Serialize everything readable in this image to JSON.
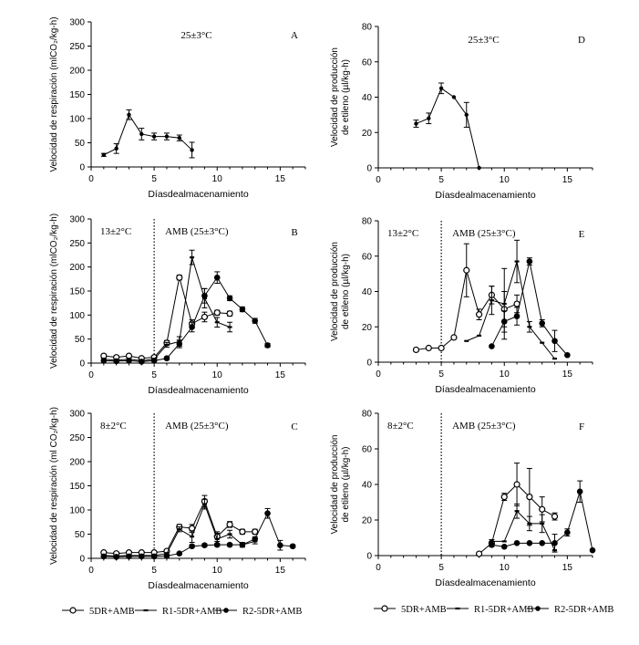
{
  "chart_data": [
    {
      "id": "A",
      "type": "line",
      "panel_letter": "A",
      "condition": "25±3°C",
      "xlabel": "Díasdealmacenamiento",
      "ylabel_line1": "",
      "ylabel_line2": "Velocidad de respiración (mlCO₂/kg-h)",
      "xlim": [
        0,
        17
      ],
      "xticks": [
        0,
        5,
        10,
        15
      ],
      "ylim": [
        0,
        300
      ],
      "yticks": [
        0,
        50,
        100,
        150,
        200,
        250,
        300
      ],
      "series": [
        {
          "marker": "dot",
          "x": [
            1,
            2,
            3,
            4,
            5,
            6,
            7,
            8
          ],
          "y": [
            25,
            38,
            108,
            68,
            63,
            63,
            60,
            35
          ],
          "err": [
            3,
            10,
            10,
            12,
            7,
            7,
            6,
            16
          ]
        }
      ]
    },
    {
      "id": "D",
      "type": "line",
      "panel_letter": "D",
      "condition": "25±3°C",
      "xlabel": "Díasdealmacenamiento",
      "ylabel_line1": "Velocidad de producción",
      "ylabel_line2": "de etileno (µl/kg-h)",
      "xlim": [
        0,
        17
      ],
      "xticks": [
        0,
        5,
        10,
        15
      ],
      "ylim": [
        0,
        80
      ],
      "yticks": [
        0,
        20,
        40,
        60,
        80
      ],
      "series": [
        {
          "marker": "dot",
          "x": [
            3,
            4,
            5,
            6,
            7,
            8
          ],
          "y": [
            25,
            28,
            45,
            40,
            30,
            0
          ],
          "err": [
            2,
            3,
            3,
            0,
            7,
            0
          ]
        }
      ]
    },
    {
      "id": "B",
      "type": "line",
      "panel_letter": "B",
      "condition": "13±2°C",
      "condition2": "AMB (25±3°C)",
      "xlabel": "Díasdealmacenamiento",
      "ylabel_line1": "",
      "ylabel_line2": "Velocidad de respiración (mlCO₂/kg-h)",
      "xlim": [
        0,
        17
      ],
      "xticks": [
        0,
        5,
        10,
        15
      ],
      "ylim": [
        0,
        300
      ],
      "yticks": [
        0,
        50,
        100,
        150,
        200,
        250,
        300
      ],
      "vline": 5,
      "series": [
        {
          "name": "5DR+AMB",
          "marker": "open",
          "x": [
            1,
            2,
            3,
            4,
            5,
            6,
            7,
            8,
            9,
            10,
            11
          ],
          "y": [
            15,
            12,
            15,
            10,
            12,
            42,
            178,
            82,
            96,
            105,
            103
          ],
          "err": [
            3,
            3,
            3,
            3,
            3,
            5,
            5,
            8,
            10,
            5,
            5
          ]
        },
        {
          "name": "R1-5DR+AMB",
          "marker": "dash",
          "x": [
            1,
            2,
            3,
            4,
            5,
            6,
            7,
            8,
            9,
            10,
            11
          ],
          "y": [
            8,
            6,
            8,
            5,
            8,
            38,
            45,
            220,
            135,
            85,
            75
          ],
          "err": [
            2,
            2,
            2,
            2,
            2,
            5,
            10,
            15,
            20,
            10,
            10
          ]
        },
        {
          "name": "R2-5DR+AMB",
          "marker": "filled",
          "x": [
            1,
            2,
            3,
            4,
            5,
            6,
            7,
            8,
            9,
            10,
            11,
            12,
            13,
            14
          ],
          "y": [
            5,
            4,
            5,
            3,
            5,
            10,
            40,
            75,
            140,
            178,
            135,
            112,
            88,
            37
          ],
          "err": [
            1,
            1,
            1,
            1,
            1,
            3,
            8,
            10,
            15,
            12,
            5,
            5,
            5,
            4
          ]
        }
      ]
    },
    {
      "id": "E",
      "type": "line",
      "panel_letter": "E",
      "condition": "13±2°C",
      "condition2": "AMB (25±3°C)",
      "xlabel": "Díasdealmacenamiento",
      "ylabel_line1": "Velocidad de producción",
      "ylabel_line2": "de etileno (µl/kg-h)",
      "xlim": [
        0,
        17
      ],
      "xticks": [
        0,
        5,
        10,
        15
      ],
      "ylim": [
        0,
        80
      ],
      "yticks": [
        0,
        20,
        40,
        60,
        80
      ],
      "vline": 5,
      "series": [
        {
          "name": "5DR+AMB",
          "marker": "open",
          "x": [
            3,
            4,
            5,
            6,
            7,
            8,
            9,
            10,
            11
          ],
          "y": [
            7,
            8,
            8,
            14,
            52,
            27,
            38,
            30,
            33
          ],
          "err": [
            0,
            0,
            0,
            0,
            15,
            3,
            5,
            10,
            5
          ]
        },
        {
          "name": "R1-5DR+AMB",
          "marker": "dash",
          "x": [
            7,
            8,
            9,
            10,
            11,
            12,
            13,
            14
          ],
          "y": [
            12,
            15,
            35,
            33,
            57,
            20,
            11,
            2
          ],
          "err": [
            0,
            0,
            8,
            20,
            12,
            3,
            0,
            0
          ]
        },
        {
          "name": "R2-5DR+AMB",
          "marker": "filled",
          "x": [
            9,
            10,
            11,
            12,
            13,
            14,
            15
          ],
          "y": [
            9,
            23,
            26,
            57,
            22,
            12,
            4
          ],
          "err": [
            0,
            6,
            5,
            2,
            2,
            6,
            0
          ]
        }
      ]
    },
    {
      "id": "C",
      "type": "line",
      "panel_letter": "C",
      "condition": "8±2°C",
      "condition2": "AMB (25±3°C)",
      "xlabel": "Díasdealmacenamiento",
      "ylabel_line1": "",
      "ylabel_line2": "Velocidad de respiración (ml CO₂/kg-h)",
      "xlim": [
        0,
        17
      ],
      "xticks": [
        0,
        5,
        10,
        15
      ],
      "ylim": [
        0,
        300
      ],
      "yticks": [
        0,
        50,
        100,
        150,
        200,
        250,
        300
      ],
      "vline": 5,
      "series": [
        {
          "name": "5DR+AMB",
          "marker": "open",
          "x": [
            1,
            2,
            3,
            4,
            5,
            6,
            7,
            8,
            9,
            10,
            11,
            12,
            13
          ],
          "y": [
            12,
            10,
            12,
            12,
            12,
            15,
            65,
            62,
            118,
            45,
            70,
            55,
            55
          ],
          "err": [
            2,
            2,
            2,
            2,
            2,
            3,
            5,
            8,
            12,
            10,
            6,
            5,
            5
          ]
        },
        {
          "name": "R1-5DR+AMB",
          "marker": "dash",
          "x": [
            1,
            2,
            3,
            4,
            5,
            6,
            7,
            8,
            9,
            10,
            11,
            12,
            13
          ],
          "y": [
            6,
            5,
            6,
            6,
            6,
            10,
            60,
            45,
            112,
            40,
            50,
            28,
            35
          ],
          "err": [
            1,
            1,
            1,
            1,
            1,
            2,
            5,
            12,
            10,
            12,
            8,
            5,
            5
          ]
        },
        {
          "name": "R2-5DR+AMB",
          "marker": "filled",
          "x": [
            1,
            2,
            3,
            4,
            5,
            6,
            7,
            8,
            9,
            10,
            11,
            12,
            13,
            14,
            15,
            16
          ],
          "y": [
            4,
            3,
            4,
            4,
            4,
            5,
            10,
            25,
            27,
            28,
            28,
            28,
            40,
            93,
            27,
            25
          ],
          "err": [
            1,
            1,
            1,
            1,
            1,
            1,
            2,
            3,
            3,
            3,
            3,
            3,
            4,
            10,
            10,
            3
          ]
        }
      ]
    },
    {
      "id": "F",
      "type": "line",
      "panel_letter": "F",
      "condition": "8±2°C",
      "condition2": "AMB (25±3°C)",
      "xlabel": "Díasdealmacenamiento",
      "ylabel_line1": "Velocidad de producción",
      "ylabel_line2": "de etileno (µl/kg-h)",
      "xlim": [
        0,
        17
      ],
      "xticks": [
        0,
        5,
        10,
        15
      ],
      "ylim": [
        0,
        80
      ],
      "yticks": [
        0,
        20,
        40,
        60,
        80
      ],
      "vline": 5,
      "series": [
        {
          "name": "5DR+AMB",
          "marker": "open",
          "x": [
            8,
            9,
            10,
            11,
            12,
            13,
            14
          ],
          "y": [
            1,
            7,
            33,
            40,
            33,
            26,
            22
          ],
          "err": [
            0,
            2,
            2,
            12,
            16,
            7,
            2
          ]
        },
        {
          "name": "R1-5DR+AMB",
          "marker": "dash",
          "x": [
            9,
            10,
            11,
            12,
            13,
            14
          ],
          "y": [
            8,
            8,
            25,
            18,
            18,
            3
          ],
          "err": [
            0,
            0,
            4,
            4,
            5,
            0
          ]
        },
        {
          "name": "R2-5DR+AMB",
          "marker": "filled",
          "x": [
            9,
            10,
            11,
            12,
            13,
            14,
            15,
            16,
            17
          ],
          "y": [
            6,
            5,
            7,
            7,
            7,
            7,
            13,
            36,
            3
          ],
          "err": [
            0,
            0,
            0,
            0,
            0,
            5,
            2,
            6,
            0
          ]
        }
      ]
    }
  ],
  "legends": {
    "left": [
      "5DR+AMB",
      "R1-5DR+AMB",
      "R2-5DR+AMB"
    ],
    "right": [
      "5DR+AMB",
      "R1-5DR+AMB",
      "R2-5DR+AMB"
    ]
  }
}
